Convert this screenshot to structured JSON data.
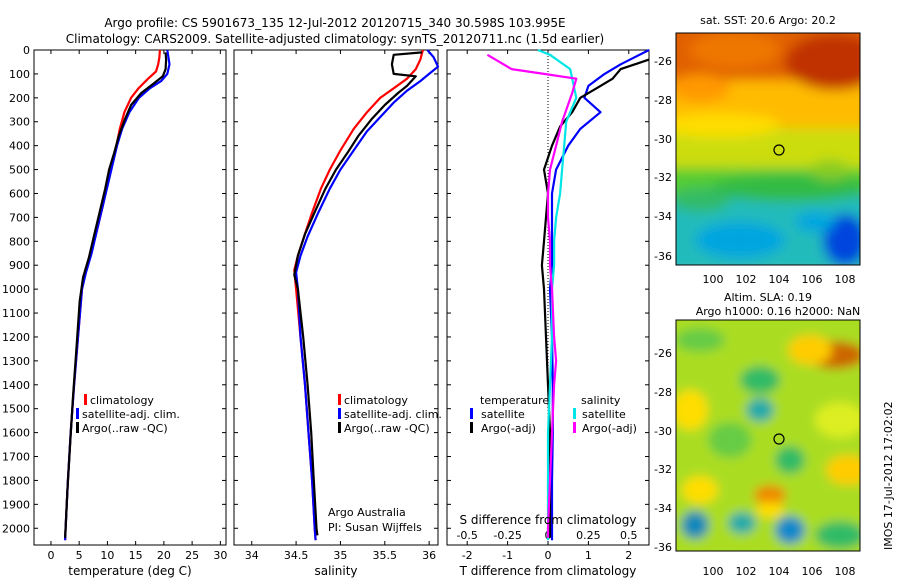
{
  "header": {
    "title_line1": "Argo profile: CS 5901673_135 12-Jul-2012 20120715_340 30.598S 103.995E",
    "title_line2": "Climatology: CARS2009. Satellite-adjusted climatology: synTS_20120711.nc (1.5d earlier)"
  },
  "colors": {
    "climatology": "#ff0000",
    "satellite": "#0000ff",
    "argo": "#000000",
    "sal_satellite": "#00e5e5",
    "sal_argo": "#ff00ff"
  },
  "depth_ticks": [
    "0",
    "100",
    "200",
    "300",
    "400",
    "500",
    "600",
    "700",
    "800",
    "900",
    "1000",
    "1100",
    "1200",
    "1300",
    "1400",
    "1500",
    "1600",
    "1700",
    "1800",
    "1900",
    "2000"
  ],
  "chart_data": [
    {
      "type": "line",
      "panel": "temperature",
      "xlabel": "temperature (deg C)",
      "ylabel": "",
      "xlim": [
        -3,
        31
      ],
      "ylim": [
        2070,
        0
      ],
      "x_ticks": [
        "0",
        "5",
        "10",
        "15",
        "20",
        "25",
        "30"
      ],
      "x_tick_values": [
        0,
        5,
        10,
        15,
        20,
        25,
        30
      ],
      "legend": [
        "climatology",
        "satellite-adj. clim.",
        "Argo(..raw -QC)"
      ],
      "legend_position": "lower-center",
      "series": [
        {
          "name": "climatology",
          "color": "climatology",
          "points": [
            [
              19.3,
              0
            ],
            [
              19.2,
              30
            ],
            [
              19.0,
              60
            ],
            [
              18.6,
              90
            ],
            [
              17.2,
              120
            ],
            [
              15.5,
              160
            ],
            [
              14.2,
              200
            ],
            [
              13.0,
              260
            ],
            [
              12.2,
              330
            ],
            [
              11.6,
              400
            ],
            [
              10.8,
              480
            ],
            [
              10.0,
              560
            ],
            [
              9.2,
              650
            ],
            [
              8.2,
              750
            ],
            [
              7.1,
              850
            ],
            [
              6.1,
              930
            ],
            [
              5.5,
              1000
            ],
            [
              4.8,
              1200
            ],
            [
              4.1,
              1400
            ],
            [
              3.5,
              1600
            ],
            [
              3.0,
              1800
            ],
            [
              2.6,
              2000
            ],
            [
              2.5,
              2050
            ]
          ]
        },
        {
          "name": "satellite-adj. clim.",
          "color": "satellite",
          "points": [
            [
              20.6,
              0
            ],
            [
              20.8,
              30
            ],
            [
              21.0,
              60
            ],
            [
              20.6,
              100
            ],
            [
              19.5,
              130
            ],
            [
              17.5,
              160
            ],
            [
              15.6,
              200
            ],
            [
              13.9,
              260
            ],
            [
              12.6,
              330
            ],
            [
              11.7,
              400
            ],
            [
              10.9,
              480
            ],
            [
              10.1,
              560
            ],
            [
              9.2,
              650
            ],
            [
              8.2,
              750
            ],
            [
              7.2,
              850
            ],
            [
              6.2,
              930
            ],
            [
              5.5,
              1000
            ],
            [
              4.8,
              1200
            ],
            [
              4.1,
              1400
            ],
            [
              3.5,
              1600
            ],
            [
              3.0,
              1800
            ],
            [
              2.6,
              2000
            ],
            [
              2.5,
              2050
            ]
          ]
        },
        {
          "name": "Argo(..raw -QC)",
          "color": "argo",
          "points": [
            [
              20.3,
              10
            ],
            [
              20.4,
              40
            ],
            [
              20.3,
              80
            ],
            [
              19.8,
              110
            ],
            [
              18.2,
              140
            ],
            [
              16.0,
              180
            ],
            [
              14.2,
              230
            ],
            [
              13.1,
              290
            ],
            [
              12.0,
              360
            ],
            [
              11.2,
              430
            ],
            [
              10.3,
              500
            ],
            [
              9.6,
              580
            ],
            [
              8.7,
              670
            ],
            [
              7.7,
              770
            ],
            [
              6.7,
              870
            ],
            [
              5.7,
              950
            ],
            [
              5.1,
              1050
            ],
            [
              4.5,
              1250
            ],
            [
              3.9,
              1450
            ],
            [
              3.4,
              1650
            ],
            [
              2.9,
              1850
            ],
            [
              2.6,
              2000
            ],
            [
              2.5,
              2040
            ]
          ]
        }
      ]
    },
    {
      "type": "line",
      "panel": "salinity",
      "xlabel": "salinity",
      "ylabel": "",
      "xlim": [
        33.8,
        36.1
      ],
      "ylim": [
        2070,
        0
      ],
      "x_ticks": [
        "34",
        "34.5",
        "35",
        "35.5",
        "36"
      ],
      "x_tick_values": [
        34,
        34.5,
        35,
        35.5,
        36
      ],
      "legend": [
        "climatology",
        "satellite-adj. clim.",
        "Argo(..raw -QC)"
      ],
      "legend_position": "lower-center",
      "annotations": [
        "Argo Australia",
        "PI: Susan Wijffels"
      ],
      "series": [
        {
          "name": "climatology",
          "color": "climatology",
          "points": [
            [
              35.93,
              0
            ],
            [
              35.9,
              40
            ],
            [
              35.85,
              80
            ],
            [
              35.75,
              120
            ],
            [
              35.6,
              160
            ],
            [
              35.45,
              200
            ],
            [
              35.3,
              260
            ],
            [
              35.15,
              330
            ],
            [
              35.0,
              420
            ],
            [
              34.88,
              500
            ],
            [
              34.78,
              580
            ],
            [
              34.68,
              680
            ],
            [
              34.59,
              780
            ],
            [
              34.52,
              860
            ],
            [
              34.48,
              920
            ],
            [
              34.5,
              1000
            ],
            [
              34.55,
              1200
            ],
            [
              34.6,
              1400
            ],
            [
              34.64,
              1600
            ],
            [
              34.68,
              1800
            ],
            [
              34.71,
              2000
            ],
            [
              34.72,
              2050
            ]
          ]
        },
        {
          "name": "satellite-adj. clim.",
          "color": "satellite",
          "points": [
            [
              35.98,
              0
            ],
            [
              36.05,
              30
            ],
            [
              36.1,
              70
            ],
            [
              36.0,
              100
            ],
            [
              35.9,
              130
            ],
            [
              35.75,
              170
            ],
            [
              35.6,
              220
            ],
            [
              35.45,
              280
            ],
            [
              35.3,
              340
            ],
            [
              35.15,
              420
            ],
            [
              35.0,
              500
            ],
            [
              34.88,
              580
            ],
            [
              34.75,
              680
            ],
            [
              34.63,
              780
            ],
            [
              34.55,
              860
            ],
            [
              34.5,
              930
            ],
            [
              34.52,
              1000
            ],
            [
              34.55,
              1200
            ],
            [
              34.6,
              1400
            ],
            [
              34.64,
              1600
            ],
            [
              34.68,
              1800
            ],
            [
              34.71,
              2000
            ],
            [
              34.72,
              2050
            ]
          ]
        },
        {
          "name": "Argo(..raw -QC)",
          "color": "argo",
          "points": [
            [
              35.92,
              10
            ],
            [
              35.6,
              20
            ],
            [
              35.58,
              60
            ],
            [
              35.6,
              100
            ],
            [
              35.85,
              110
            ],
            [
              35.75,
              150
            ],
            [
              35.65,
              180
            ],
            [
              35.5,
              230
            ],
            [
              35.35,
              290
            ],
            [
              35.2,
              360
            ],
            [
              35.08,
              430
            ],
            [
              34.95,
              500
            ],
            [
              34.83,
              580
            ],
            [
              34.72,
              670
            ],
            [
              34.6,
              770
            ],
            [
              34.52,
              860
            ],
            [
              34.48,
              940
            ],
            [
              34.52,
              1000
            ],
            [
              34.58,
              1200
            ],
            [
              34.63,
              1400
            ],
            [
              34.67,
              1600
            ],
            [
              34.7,
              1800
            ],
            [
              34.73,
              2000
            ],
            [
              34.74,
              2030
            ]
          ]
        }
      ]
    },
    {
      "type": "line",
      "panel": "differences",
      "xlabel": "T difference from climatology",
      "ylabel": "",
      "xlim": [
        -2.5,
        2.5
      ],
      "ylim": [
        2070,
        0
      ],
      "x_ticks": [
        "-2",
        "-1",
        "0",
        "1",
        "2"
      ],
      "x_tick_values": [
        -2,
        -1,
        0,
        1,
        2
      ],
      "x2label": "S difference from climatology",
      "x2_ticks": [
        "-0.5",
        "-0.25",
        "0",
        "0.25",
        "0.5"
      ],
      "x2_tick_values": [
        -0.5,
        -0.25,
        0,
        0.25,
        0.5
      ],
      "legend_groups": [
        {
          "title": "temperature",
          "items": [
            "satellite",
            "Argo(-adj)"
          ]
        },
        {
          "title": "salinity",
          "items": [
            "satellite",
            "Argo(-adj)"
          ]
        }
      ],
      "legend_position": "lower-center",
      "series": [
        {
          "name": "satellite",
          "group": "temperature",
          "color": "satellite",
          "points": [
            [
              2.5,
              0
            ],
            [
              1.8,
              60
            ],
            [
              1.4,
              100
            ],
            [
              1.0,
              150
            ],
            [
              0.9,
              200
            ],
            [
              1.3,
              260
            ],
            [
              0.8,
              330
            ],
            [
              0.5,
              400
            ],
            [
              0.2,
              500
            ],
            [
              0.1,
              600
            ],
            [
              0.1,
              700
            ],
            [
              0.1,
              800
            ],
            [
              0.1,
              900
            ],
            [
              0.05,
              1000
            ],
            [
              0.1,
              1200
            ],
            [
              0.12,
              1400
            ],
            [
              0.12,
              1600
            ],
            [
              0.1,
              1800
            ],
            [
              0.1,
              2000
            ],
            [
              0.1,
              2050
            ]
          ]
        },
        {
          "name": "Argo(-adj)",
          "group": "temperature",
          "color": "argo",
          "points": [
            [
              2.5,
              40
            ],
            [
              1.8,
              80
            ],
            [
              1.6,
              120
            ],
            [
              1.2,
              160
            ],
            [
              0.8,
              200
            ],
            [
              0.6,
              260
            ],
            [
              0.3,
              320
            ],
            [
              0.1,
              400
            ],
            [
              -0.1,
              500
            ],
            [
              0.0,
              600
            ],
            [
              -0.05,
              700
            ],
            [
              -0.1,
              800
            ],
            [
              -0.15,
              900
            ],
            [
              -0.1,
              1000
            ],
            [
              -0.05,
              1200
            ],
            [
              0.0,
              1400
            ],
            [
              0.05,
              1600
            ],
            [
              0.05,
              1800
            ],
            [
              0.05,
              2000
            ],
            [
              0.05,
              2040
            ]
          ]
        },
        {
          "name": "satellite",
          "group": "salinity",
          "color": "sal_satellite",
          "points": [
            [
              -0.25,
              0
            ],
            [
              0.05,
              20
            ],
            [
              0.3,
              50
            ],
            [
              0.55,
              80
            ],
            [
              0.6,
              120
            ],
            [
              0.7,
              200
            ],
            [
              0.45,
              300
            ],
            [
              0.4,
              400
            ],
            [
              0.35,
              500
            ],
            [
              0.3,
              600
            ],
            [
              0.2,
              700
            ],
            [
              0.15,
              800
            ],
            [
              0.15,
              900
            ],
            [
              0.1,
              1000
            ],
            [
              0.1,
              1200
            ],
            [
              0.05,
              1400
            ],
            [
              0.0,
              1600
            ],
            [
              0.0,
              1800
            ],
            [
              0.0,
              2000
            ],
            [
              0.0,
              2050
            ]
          ]
        },
        {
          "name": "Argo(-adj)",
          "group": "salinity",
          "color": "sal_argo",
          "points": [
            [
              -1.5,
              20
            ],
            [
              -0.9,
              80
            ],
            [
              -0.1,
              100
            ],
            [
              0.7,
              120
            ],
            [
              0.6,
              180
            ],
            [
              0.35,
              300
            ],
            [
              0.2,
              400
            ],
            [
              0.05,
              500
            ],
            [
              0.0,
              600
            ],
            [
              0.0,
              700
            ],
            [
              0.05,
              800
            ],
            [
              0.05,
              900
            ],
            [
              0.1,
              1000
            ],
            [
              0.15,
              1200
            ],
            [
              0.2,
              1300
            ],
            [
              0.15,
              1400
            ],
            [
              0.1,
              1600
            ],
            [
              0.05,
              1800
            ],
            [
              0.0,
              2000
            ],
            [
              0.0,
              2040
            ]
          ]
        }
      ]
    }
  ],
  "maps": {
    "sst": {
      "title": "sat. SST: 20.6 Argo: 20.2",
      "x_ticks": [
        "100",
        "102",
        "104",
        "106",
        "108"
      ],
      "y_ticks": [
        "-26",
        "-28",
        "-30",
        "-32",
        "-34",
        "-36"
      ]
    },
    "sla": {
      "title_line1": "Altim. SLA: 0.19",
      "title_line2": "Argo h1000: 0.16 h2000: NaN",
      "x_ticks": [
        "100",
        "102",
        "104",
        "106",
        "108"
      ],
      "y_ticks": [
        "-26",
        "-28",
        "-30",
        "-32",
        "-34",
        "-36"
      ]
    },
    "credit": "IMOS 17-Jul-2012 17:02:02"
  }
}
